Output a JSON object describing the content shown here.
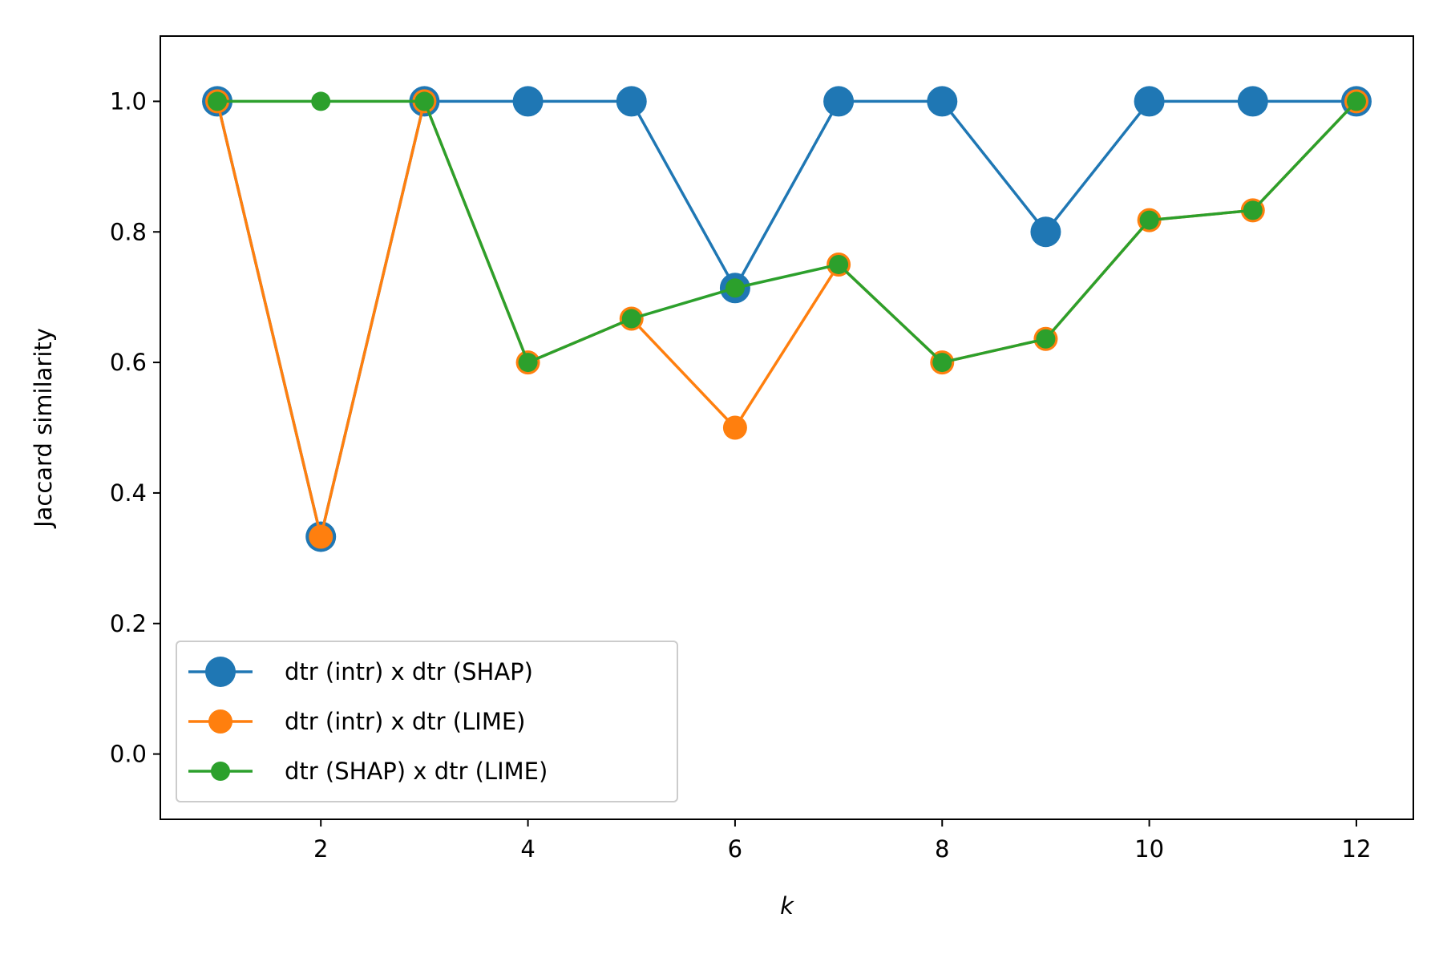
{
  "chart_data": {
    "type": "line",
    "xlabel": "k",
    "ylabel": "Jaccard similarity",
    "xlim": [
      0.45,
      12.55
    ],
    "ylim": [
      -0.1,
      1.1
    ],
    "xticks": [
      2,
      4,
      6,
      8,
      10,
      12
    ],
    "yticks": [
      0.0,
      0.2,
      0.4,
      0.6,
      0.8,
      1.0
    ],
    "xtick_labels": [
      "2",
      "4",
      "6",
      "8",
      "10",
      "12"
    ],
    "ytick_labels": [
      "0.0",
      "0.2",
      "0.4",
      "0.6",
      "0.8",
      "1.0"
    ],
    "grid": false,
    "legend_position": "lower-left",
    "x": [
      1,
      2,
      3,
      4,
      5,
      6,
      7,
      8,
      9,
      10,
      11,
      12
    ],
    "series": [
      {
        "name": "dtr (intr) x dtr (SHAP)",
        "color": "#1f77b4",
        "marker": "large-circle",
        "values": [
          1.0,
          0.333,
          1.0,
          1.0,
          1.0,
          0.714,
          1.0,
          1.0,
          0.8,
          1.0,
          1.0,
          1.0
        ]
      },
      {
        "name": "dtr (intr) x dtr (LIME)",
        "color": "#ff7f0e",
        "marker": "medium-circle",
        "values": [
          1.0,
          0.333,
          1.0,
          0.6,
          0.667,
          0.5,
          0.75,
          0.6,
          0.636,
          0.818,
          0.833,
          1.0
        ]
      },
      {
        "name": "dtr (SHAP) x dtr (LIME)",
        "color": "#2ca02c",
        "marker": "small-circle",
        "values": [
          1.0,
          1.0,
          1.0,
          0.6,
          0.667,
          0.714,
          0.75,
          0.6,
          0.636,
          0.818,
          0.833,
          1.0
        ]
      }
    ]
  }
}
